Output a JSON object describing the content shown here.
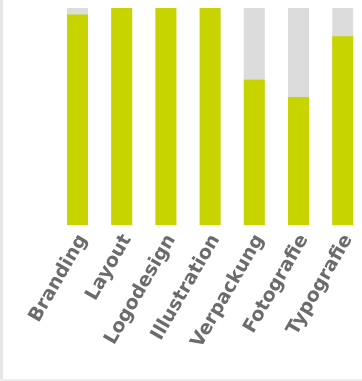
{
  "chart_data": {
    "type": "bar",
    "categories": [
      "Branding",
      "Layout",
      "Logodesign",
      "Illustration",
      "Verpackung",
      "Fotografie",
      "Typografie"
    ],
    "values": [
      97,
      100,
      100,
      100,
      67,
      59,
      87
    ],
    "ylim": [
      0,
      100
    ],
    "colors": {
      "bar": "#c8d400",
      "track": "#dcdcdc",
      "label": "#6b6b6b"
    },
    "grid": false
  }
}
